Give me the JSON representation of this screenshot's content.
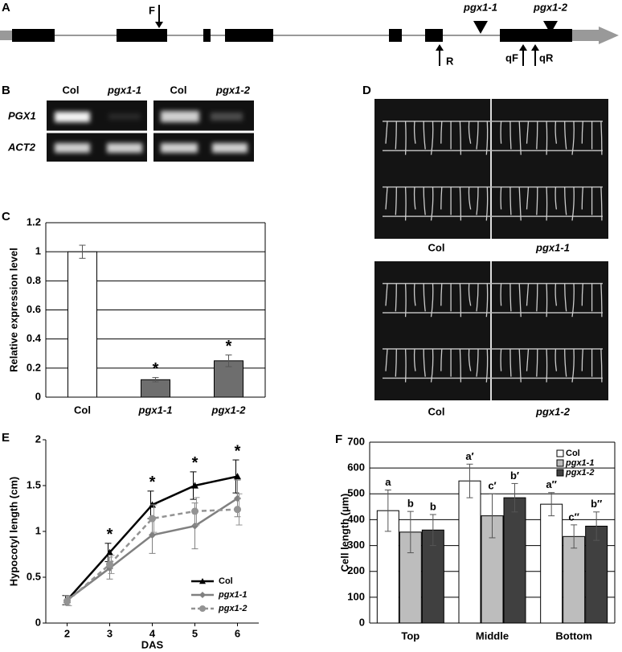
{
  "figure": {
    "panel_a": {
      "label": "A",
      "primer_f": "F",
      "mutant_1": "pgx1-1",
      "mutant_2": "pgx1-2",
      "primer_r": "R",
      "primer_qf": "qF",
      "primer_qr": "qR"
    },
    "panel_b": {
      "label": "B",
      "lanes": [
        "Col",
        "pgx1-1",
        "Col",
        "pgx1-2"
      ],
      "rows": [
        "PGX1",
        "ACT2"
      ]
    },
    "panel_d": {
      "label": "D",
      "top_labels": [
        "Col",
        "pgx1-1"
      ],
      "bottom_labels": [
        "Col",
        "pgx1-2"
      ]
    }
  },
  "chart_data": [
    {
      "panel": "C",
      "type": "bar",
      "ylabel": "Relative expression level",
      "categories": [
        "Col",
        "pgx1-1",
        "pgx1-2"
      ],
      "values": [
        1,
        0.12,
        0.25
      ],
      "errors": [
        0.045,
        0.015,
        0.04
      ],
      "colors": [
        "#ffffff",
        "#6e6e6e",
        "#6e6e6e"
      ],
      "significance": [
        null,
        "*",
        "*"
      ],
      "ylim": [
        0,
        1.2
      ],
      "yticks": [
        0,
        0.2,
        0.4,
        0.6,
        0.8,
        1,
        1.2
      ],
      "grid": true
    },
    {
      "panel": "E",
      "type": "line",
      "xlabel": "DAS",
      "ylabel": "Hypocotyl length (cm)",
      "x": [
        2,
        3,
        4,
        5,
        6
      ],
      "xlim": [
        1.5,
        6.5
      ],
      "xticks": [
        2,
        3,
        4,
        5,
        6
      ],
      "ylim": [
        0,
        2
      ],
      "yticks": [
        0,
        0.5,
        1,
        1.5,
        2
      ],
      "legend": "lower right",
      "significance": [
        null,
        "*",
        "*",
        "*",
        "*"
      ],
      "series": [
        {
          "name": "Col",
          "color": "#000000",
          "marker": "triangle",
          "dashed": false,
          "values": [
            0.25,
            0.77,
            1.29,
            1.5,
            1.6
          ],
          "errors": [
            0.05,
            0.1,
            0.15,
            0.15,
            0.18
          ]
        },
        {
          "name": "pgx1-1",
          "color": "#808080",
          "marker": "diamond",
          "dashed": false,
          "values": [
            0.25,
            0.6,
            0.96,
            1.06,
            1.36
          ],
          "errors": [
            0.05,
            0.12,
            0.2,
            0.25,
            0.2
          ]
        },
        {
          "name": "pgx1-2",
          "color": "#939393",
          "marker": "circle",
          "dashed": true,
          "values": [
            0.24,
            0.64,
            1.14,
            1.22,
            1.24
          ],
          "errors": [
            0.05,
            0.1,
            0.15,
            0.15,
            0.17
          ]
        }
      ]
    },
    {
      "panel": "F",
      "type": "grouped_bar",
      "ylabel": "Cell length (µm)",
      "categories": [
        "Top",
        "Middle",
        "Bottom"
      ],
      "ylim": [
        0,
        700
      ],
      "yticks": [
        0,
        100,
        200,
        300,
        400,
        500,
        600,
        700
      ],
      "grid": true,
      "legend": "upper right",
      "series": [
        {
          "name": "Col",
          "color": "#ffffff",
          "values": [
            435,
            550,
            460
          ],
          "errors": [
            80,
            65,
            45
          ],
          "letters": [
            "a",
            "a′",
            "a′′"
          ]
        },
        {
          "name": "pgx1-1",
          "color": "#bdbdbd",
          "values": [
            352,
            415,
            335
          ],
          "errors": [
            80,
            85,
            45
          ],
          "letters": [
            "b",
            "c′",
            "c′′"
          ]
        },
        {
          "name": "pgx1-2",
          "color": "#404040",
          "values": [
            360,
            485,
            375
          ],
          "errors": [
            60,
            55,
            55
          ],
          "letters": [
            "b",
            "b′",
            "b′′"
          ]
        }
      ]
    }
  ]
}
